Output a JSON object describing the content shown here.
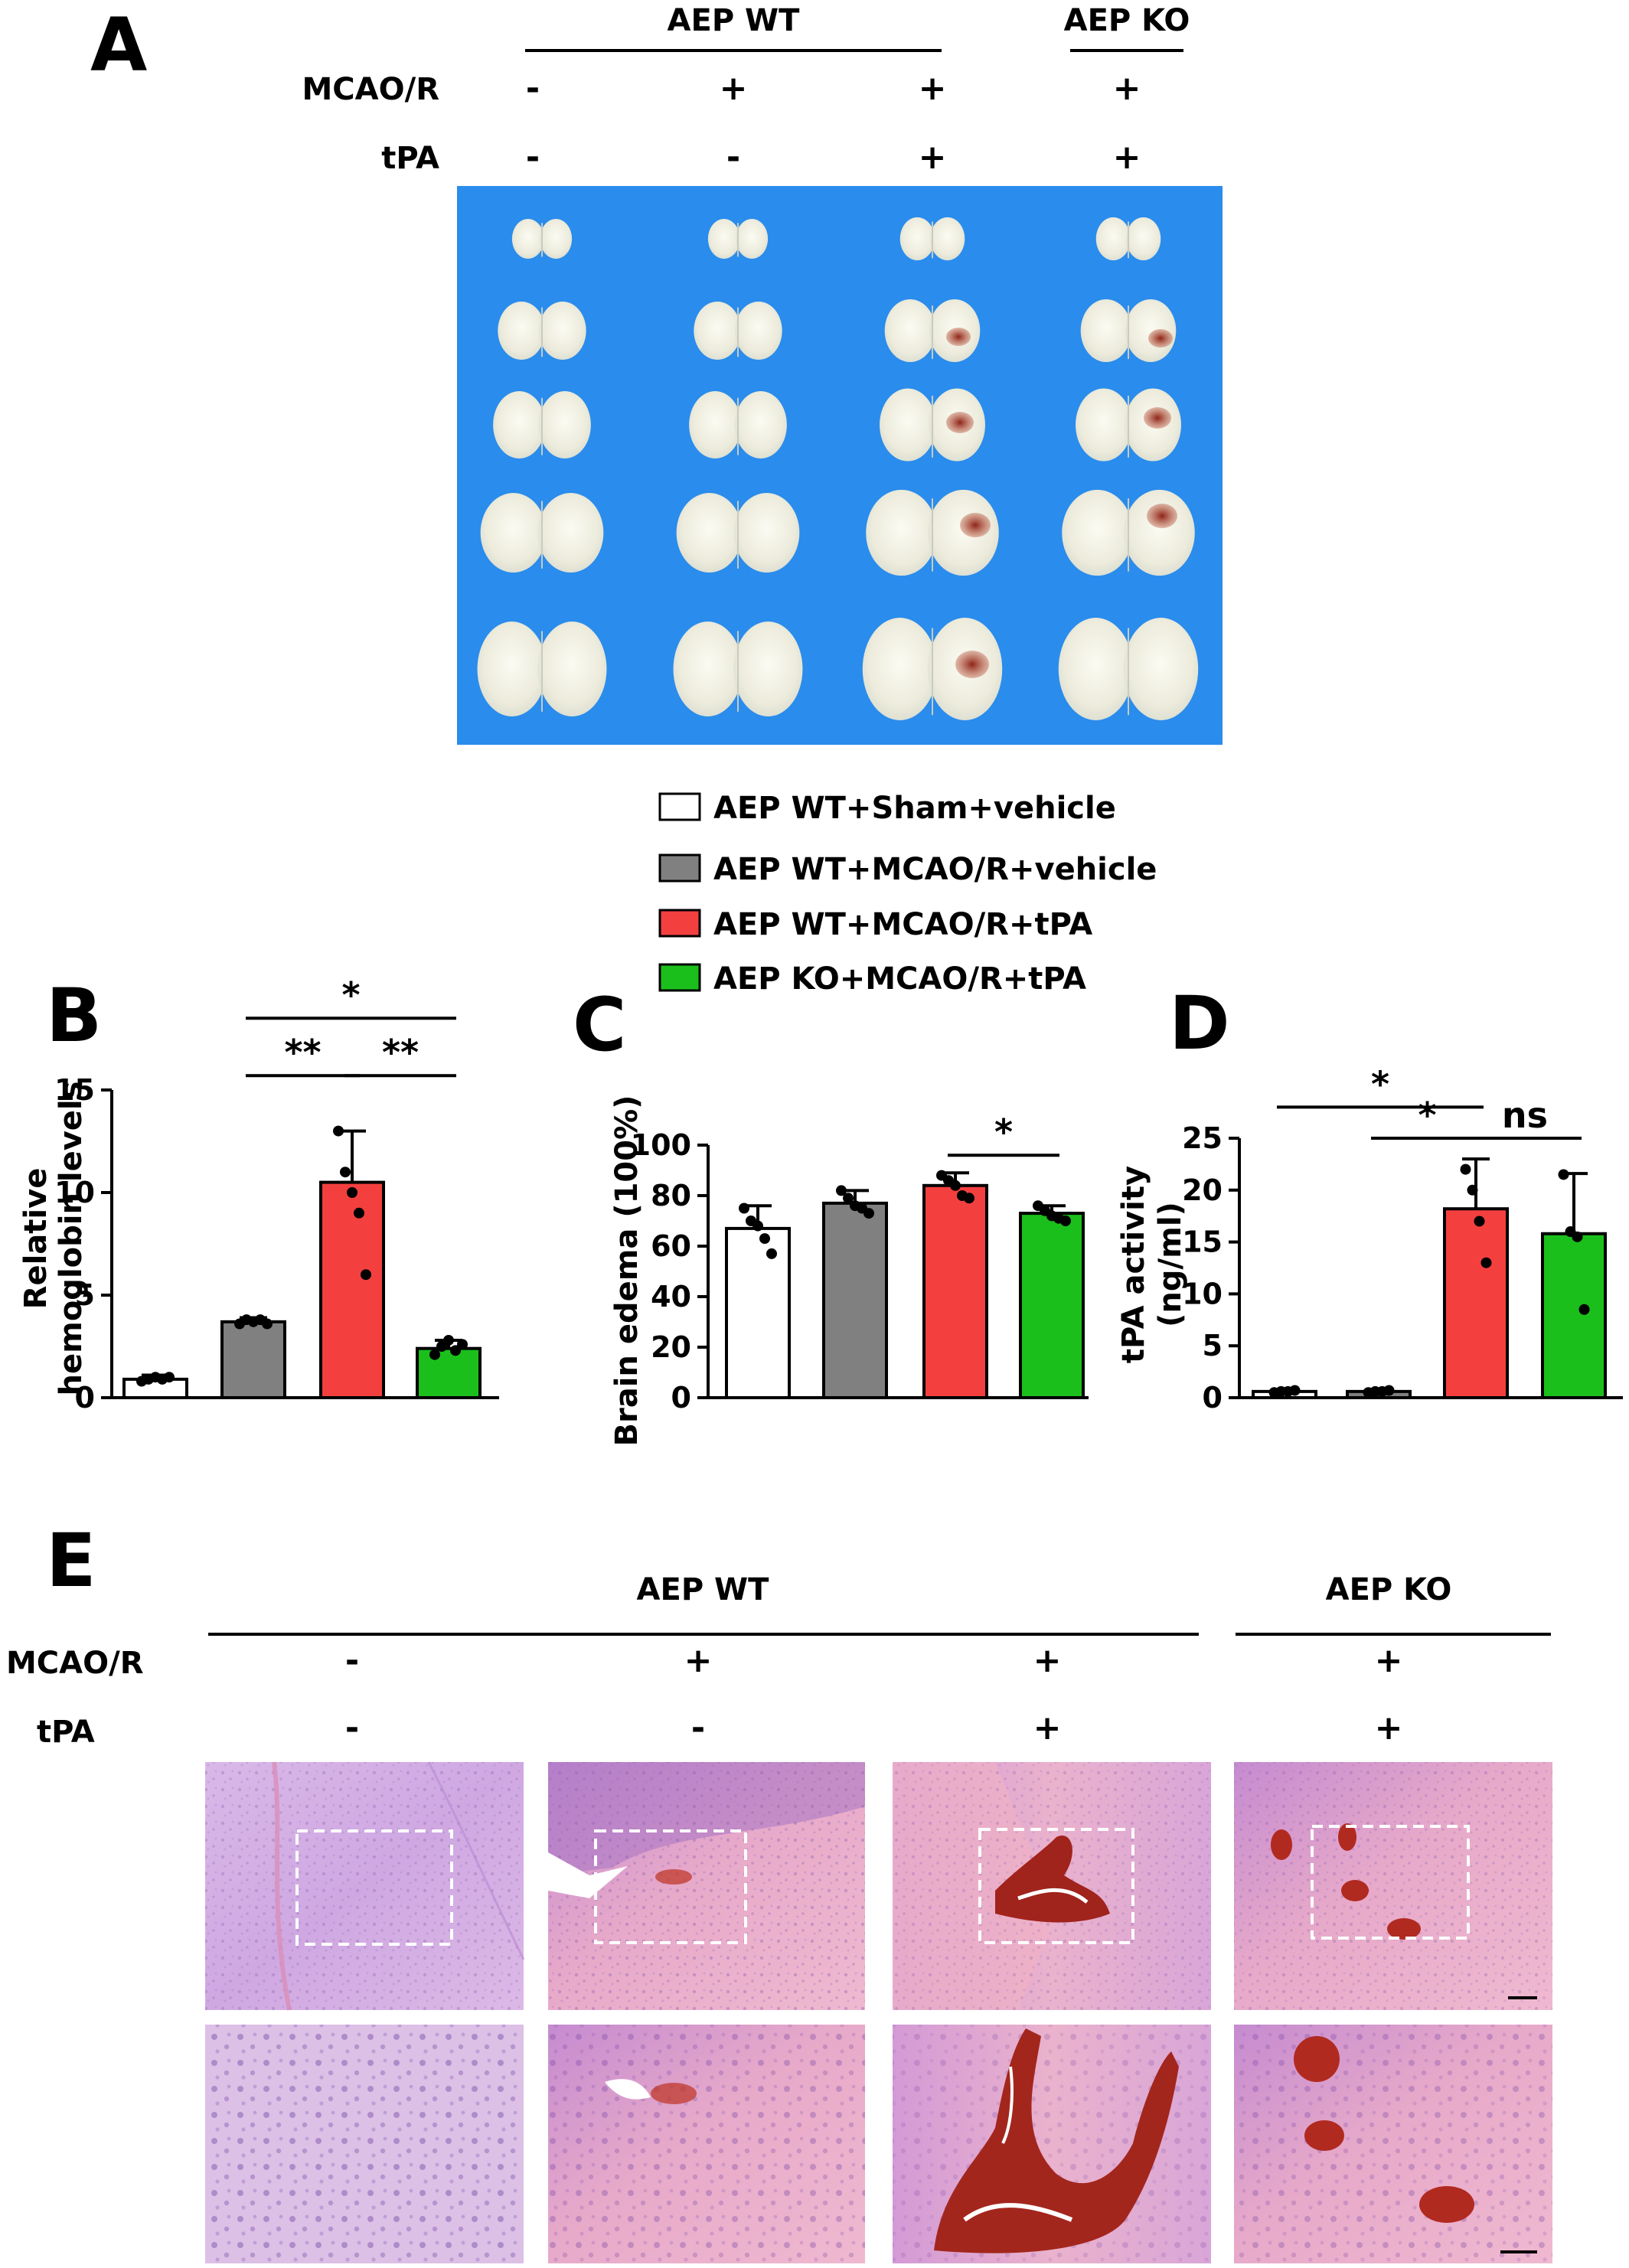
{
  "panels": {
    "A": {
      "letter": "A",
      "group_wt": "AEP WT",
      "group_ko": "AEP KO",
      "row_labels": [
        "MCAO/R",
        "tPA"
      ],
      "signs": [
        [
          "-",
          "+",
          "+",
          "+"
        ],
        [
          "-",
          "-",
          "+",
          "+"
        ]
      ]
    },
    "legend": {
      "items": [
        {
          "label": "AEP WT+Sham+vehicle",
          "color": "#ffffff"
        },
        {
          "label": "AEP WT+MCAO/R+vehicle",
          "color": "#808080"
        },
        {
          "label": "AEP WT+MCAO/R+tPA",
          "color": "#f43f3f"
        },
        {
          "label": "AEP KO+MCAO/R+tPA",
          "color": "#1bbf1b"
        }
      ]
    },
    "E": {
      "letter": "E",
      "group_wt": "AEP WT",
      "group_ko": "AEP KO",
      "row_labels": [
        "MCAO/R",
        "tPA"
      ],
      "signs": [
        [
          "-",
          "+",
          "+",
          "+"
        ],
        [
          "-",
          "-",
          "+",
          "+"
        ]
      ]
    }
  },
  "chart_data": [
    {
      "letter": "B",
      "type": "bar",
      "ylabel_lines": [
        "Relative",
        "hemoglobin levels"
      ],
      "ylim": [
        0,
        15
      ],
      "yticks": [
        "0",
        "5",
        "10",
        "15"
      ],
      "values": [
        0.9,
        3.7,
        10.5,
        2.4
      ],
      "errors": [
        0.2,
        0.2,
        2.5,
        0.4
      ],
      "points": [
        [
          0.8,
          0.9,
          1.0,
          0.9,
          1.0
        ],
        [
          3.6,
          3.8,
          3.7,
          3.8,
          3.6
        ],
        [
          13.0,
          11.0,
          10.0,
          9.0,
          6.0
        ],
        [
          2.1,
          2.5,
          2.8,
          2.3,
          2.6
        ]
      ],
      "colors": [
        "#ffffff",
        "#808080",
        "#f43f3f",
        "#1bbf1b"
      ],
      "sig": [
        {
          "from": 1,
          "to": 2,
          "label": "**",
          "y": 15.7
        },
        {
          "from": 2,
          "to": 3,
          "label": "**",
          "y": 15.7
        },
        {
          "from": 1,
          "to": 3,
          "label": "*",
          "y": 18.5
        }
      ]
    },
    {
      "letter": "C",
      "type": "bar",
      "ylabel_lines": [
        "Brain edema (100%)"
      ],
      "ylim": [
        0,
        100
      ],
      "yticks": [
        "0",
        "20",
        "40",
        "60",
        "80",
        "100"
      ],
      "values": [
        67,
        77,
        84,
        73
      ],
      "errors": [
        9,
        5,
        5,
        3
      ],
      "points": [
        [
          75,
          70,
          68,
          63,
          57
        ],
        [
          82,
          79,
          76,
          75,
          73
        ],
        [
          88,
          86,
          84,
          80,
          79
        ],
        [
          76,
          74,
          72,
          71,
          70
        ]
      ],
      "colors": [
        "#ffffff",
        "#808080",
        "#f43f3f",
        "#1bbf1b"
      ],
      "sig": [
        {
          "from": 2,
          "to": 3,
          "label": "*",
          "y": 96
        }
      ]
    },
    {
      "letter": "D",
      "type": "bar",
      "ylabel_lines": [
        "tPA activity",
        "(ng/ml)"
      ],
      "ylim": [
        0,
        25
      ],
      "yticks": [
        "0",
        "5",
        "10",
        "15",
        "20",
        "25"
      ],
      "values": [
        0.6,
        0.6,
        18.2,
        15.8
      ],
      "errors": [
        0.1,
        0.1,
        4.8,
        5.8
      ],
      "points": [
        [
          0.5,
          0.6,
          0.6,
          0.7
        ],
        [
          0.5,
          0.6,
          0.6,
          0.7
        ],
        [
          22,
          20,
          17,
          13
        ],
        [
          21.5,
          16,
          15.5,
          8.5
        ]
      ],
      "colors": [
        "#ffffff",
        "#808080",
        "#f43f3f",
        "#1bbf1b"
      ],
      "sig": [
        {
          "from": 0,
          "to": 2,
          "label": "*",
          "y": 28
        },
        {
          "from": 1,
          "to": 2,
          "label": "*",
          "y": 25
        },
        {
          "from": 2,
          "to": 3,
          "label": "ns",
          "y": 25
        }
      ]
    }
  ]
}
